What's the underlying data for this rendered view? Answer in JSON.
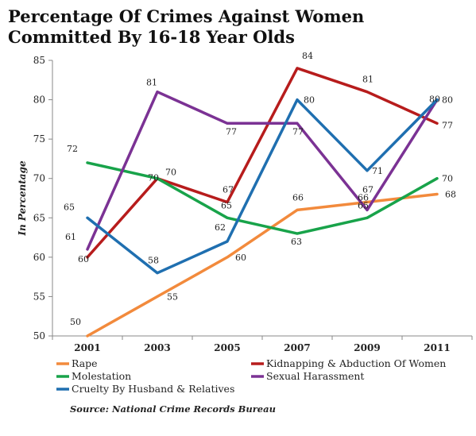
{
  "title": "Percentage Of Crimes Against Women Committed By 16-18 Year Olds",
  "source": "Source: National Crime Records Bureau",
  "chart_data": {
    "type": "line",
    "title": "Percentage Of Crimes Against Women Committed By 16-18 Year Olds",
    "xlabel": "",
    "ylabel": "In Percentage",
    "ylim": [
      50,
      85
    ],
    "yticks": [
      50,
      55,
      60,
      65,
      70,
      75,
      80,
      85
    ],
    "categories": [
      "2001",
      "2003",
      "2005",
      "2007",
      "2009",
      "2011"
    ],
    "grid": false,
    "legend_position": "bottom",
    "series": [
      {
        "name": "Rape",
        "color": "#f28a3c",
        "values": [
          50,
          55,
          60,
          66,
          67,
          68
        ]
      },
      {
        "name": "Kidnapping & Abduction Of Women",
        "color": "#b71c1c",
        "values": [
          60,
          70,
          67,
          84,
          81,
          77
        ]
      },
      {
        "name": "Molestation",
        "color": "#18a34a",
        "values": [
          72,
          70,
          65,
          63,
          65,
          70
        ]
      },
      {
        "name": "Sexual Harassment",
        "color": "#7b3294",
        "values": [
          61,
          81,
          77,
          77,
          66,
          80
        ]
      },
      {
        "name": "Cruelty By Husband & Relatives",
        "color": "#1f6fb0",
        "values": [
          65,
          58,
          62,
          80,
          71,
          80
        ]
      }
    ]
  }
}
